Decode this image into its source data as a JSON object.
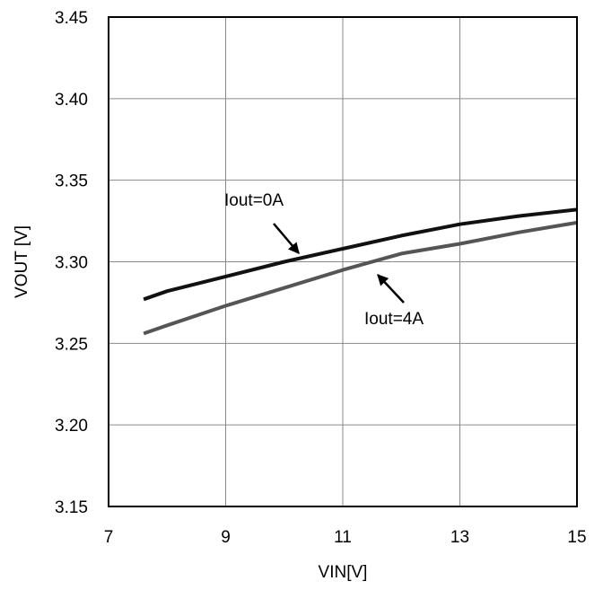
{
  "chart_data": {
    "type": "line",
    "xlabel": "VIN[V]",
    "ylabel": "VOUT [V]",
    "xlim": [
      7,
      15
    ],
    "ylim": [
      3.15,
      3.45
    ],
    "xticks": [
      "7",
      "9",
      "11",
      "13",
      "15"
    ],
    "yticks": [
      "3.15",
      "3.20",
      "3.25",
      "3.30",
      "3.35",
      "3.40",
      "3.45"
    ],
    "grid": true,
    "series": [
      {
        "name": "Iout=0A",
        "color": "#111111",
        "x": [
          7.6,
          8.0,
          9.0,
          10.0,
          11.0,
          12.0,
          13.0,
          14.0,
          15.0
        ],
        "y": [
          3.277,
          3.282,
          3.291,
          3.3,
          3.308,
          3.316,
          3.323,
          3.328,
          3.332
        ]
      },
      {
        "name": "Iout=4A",
        "color": "#555555",
        "x": [
          7.6,
          8.0,
          9.0,
          10.0,
          11.0,
          12.0,
          13.0,
          14.0,
          15.0
        ],
        "y": [
          3.256,
          3.261,
          3.273,
          3.284,
          3.295,
          3.305,
          3.311,
          3.318,
          3.324
        ]
      }
    ],
    "annotations": [
      {
        "text": "Iout=0A",
        "series": 0
      },
      {
        "text": "Iout=4A",
        "series": 1
      }
    ]
  }
}
